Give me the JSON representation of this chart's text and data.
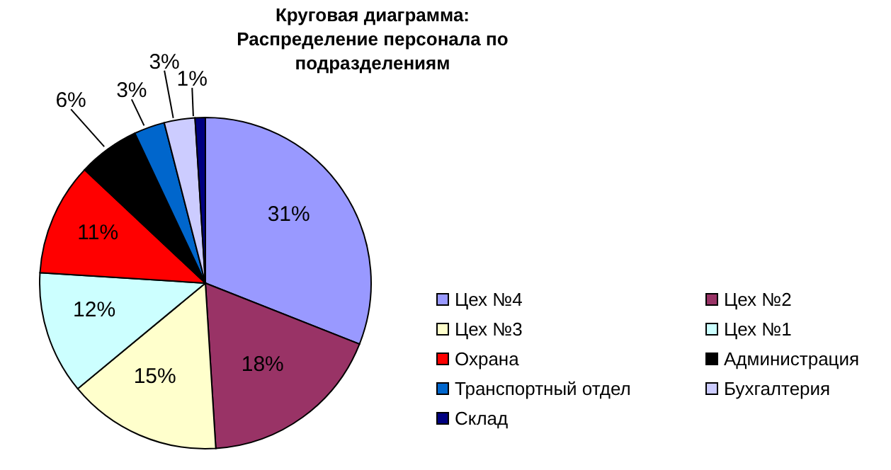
{
  "chart_data": {
    "type": "pie",
    "title": "Круговая диаграмма: Распределение персонала по подразделениям",
    "categories": [
      "Цех №4",
      "Цех №2",
      "Цех №3",
      "Цех №1",
      "Охрана",
      "Администрация",
      "Транспортный отдел",
      "Бухгалтерия",
      "Склад"
    ],
    "values": [
      31,
      18,
      15,
      12,
      11,
      6,
      3,
      3,
      1
    ],
    "colors": [
      "#9999ff",
      "#993366",
      "#ffffcc",
      "#ccffff",
      "#ff0000",
      "#000000",
      "#0066cc",
      "#ccccff",
      "#000080"
    ],
    "value_labels": [
      "31%",
      "18%",
      "15%",
      "12%",
      "11%",
      "6%",
      "3%",
      "3%",
      "1%"
    ],
    "legend": "right"
  }
}
